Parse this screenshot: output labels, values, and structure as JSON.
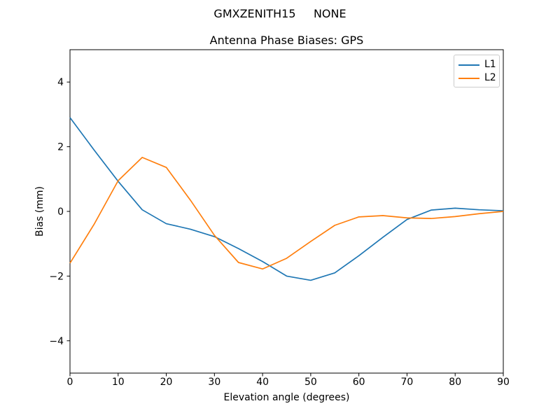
{
  "figure": {
    "background_color": "#ffffff",
    "text_color": "#000000",
    "spine_color": "#000000"
  },
  "chart_data": {
    "type": "line",
    "suptitle": "GMXZENITH15     NONE",
    "title": "Antenna Phase Biases: GPS",
    "xlabel": "Elevation angle (degrees)",
    "ylabel": "Bias (mm)",
    "xlim": [
      0,
      90
    ],
    "ylim": [
      -5,
      5
    ],
    "xticks": [
      0,
      10,
      20,
      30,
      40,
      50,
      60,
      70,
      80,
      90
    ],
    "xtick_labels": [
      "0",
      "10",
      "20",
      "30",
      "40",
      "50",
      "60",
      "70",
      "80",
      "90"
    ],
    "yticks": [
      -4,
      -2,
      0,
      2,
      4
    ],
    "ytick_labels": [
      "−4",
      "−2",
      "0",
      "2",
      "4"
    ],
    "grid": false,
    "legend": {
      "position": "upper right",
      "items": [
        "L1",
        "L2"
      ]
    },
    "x": [
      0,
      5,
      10,
      15,
      20,
      25,
      30,
      35,
      40,
      45,
      50,
      55,
      60,
      65,
      70,
      75,
      80,
      85,
      90
    ],
    "series": [
      {
        "name": "L1",
        "color": "#1f77b4",
        "values": [
          2.9,
          1.9,
          0.93,
          0.05,
          -0.38,
          -0.55,
          -0.78,
          -1.15,
          -1.55,
          -2.0,
          -2.13,
          -1.9,
          -1.37,
          -0.8,
          -0.25,
          0.04,
          0.1,
          0.05,
          0.02
        ]
      },
      {
        "name": "L2",
        "color": "#ff7f0e",
        "values": [
          -1.6,
          -0.4,
          0.95,
          1.67,
          1.36,
          0.35,
          -0.74,
          -1.58,
          -1.78,
          -1.45,
          -0.93,
          -0.43,
          -0.17,
          -0.13,
          -0.2,
          -0.22,
          -0.16,
          -0.07,
          0.0
        ]
      }
    ]
  }
}
